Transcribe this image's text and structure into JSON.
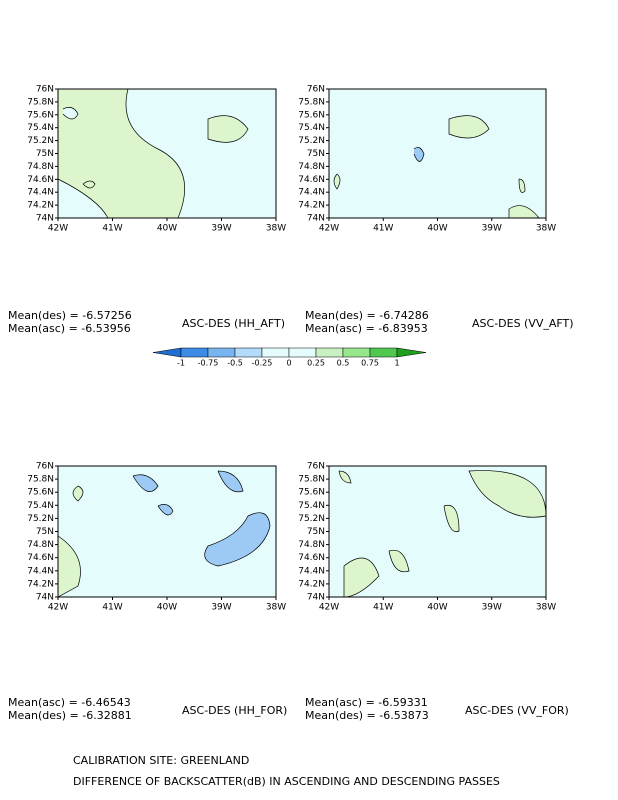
{
  "panels": [
    {
      "title": "ASC-DES (HH_AFT)",
      "stats": [
        "Mean(des) = -6.57256",
        "Mean(asc) = -6.53956"
      ],
      "yticks": [
        "76N",
        "75.8N",
        "75.6N",
        "75.4N",
        "75.2N",
        "75N",
        "74.8N",
        "74.6N",
        "74.4N",
        "74.2N",
        "74N"
      ],
      "xticks": [
        "42W",
        "41W",
        "40W",
        "39W",
        "38W"
      ]
    },
    {
      "title": "ASC-DES (VV_AFT)",
      "stats": [
        "Mean(des) = -6.74286",
        "Mean(asc) = -6.83953"
      ],
      "yticks": [
        "76N",
        "75.8N",
        "75.6N",
        "75.4N",
        "75.2N",
        "75N",
        "74.8N",
        "74.6N",
        "74.4N",
        "74.2N",
        "74N"
      ],
      "xticks": [
        "42W",
        "41W",
        "40W",
        "39W",
        "38W"
      ]
    },
    {
      "title": "ASC-DES (HH_FOR)",
      "stats": [
        "Mean(asc) = -6.46543",
        "Mean(des) = -6.32881"
      ],
      "yticks": [
        "76N",
        "75.8N",
        "75.6N",
        "75.4N",
        "75.2N",
        "75N",
        "74.8N",
        "74.6N",
        "74.4N",
        "74.2N",
        "74N"
      ],
      "xticks": [
        "42W",
        "41W",
        "40W",
        "39W",
        "38W"
      ]
    },
    {
      "title": "ASC-DES (VV_FOR)",
      "stats": [
        "Mean(asc) = -6.59331",
        "Mean(des) = -6.53873"
      ],
      "yticks": [
        "76N",
        "75.8N",
        "75.6N",
        "75.4N",
        "75.2N",
        "75N",
        "74.8N",
        "74.6N",
        "74.4N",
        "74.2N",
        "74N"
      ],
      "xticks": [
        "42W",
        "41W",
        "40W",
        "39W",
        "38W"
      ]
    }
  ],
  "colorbar": {
    "labels": [
      "-1",
      "-0.75",
      "-0.5",
      "-0.25",
      "0",
      "0.25",
      "0.5",
      "0.75",
      "1"
    ]
  },
  "footer": [
    "CALIBRATION SITE: GREENLAND",
    "DIFFERENCE OF BACKSCATTER(dB) IN ASCENDING AND DESCENDING PASSES"
  ]
}
